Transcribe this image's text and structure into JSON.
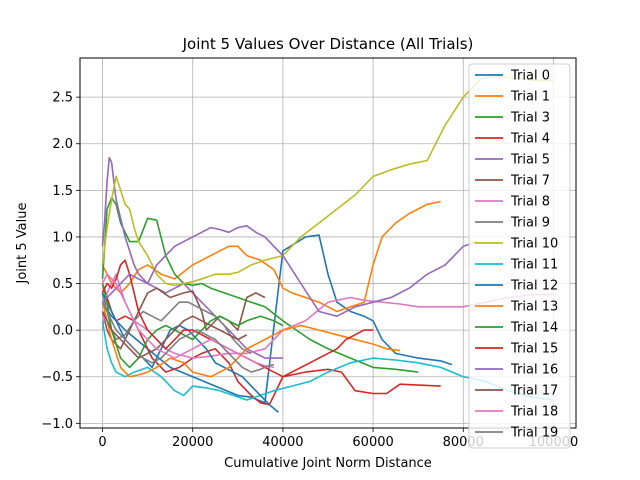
{
  "chart_data": {
    "type": "line",
    "title": "Joint 5 Values Over Distance (All Trials)",
    "xlabel": "Cumulative Joint Norm Distance",
    "ylabel": "Joint 5 Value",
    "xlim": [
      -5000,
      105000
    ],
    "ylim": [
      -1.05,
      2.92
    ],
    "xticks": [
      0,
      20000,
      40000,
      60000,
      80000,
      100000
    ],
    "yticks": [
      -1.0,
      -0.5,
      0.0,
      0.5,
      1.0,
      1.5,
      2.0,
      2.5
    ],
    "ytick_labels": [
      "−1.0",
      "−0.5",
      "0.0",
      "0.5",
      "1.0",
      "1.5",
      "2.0",
      "2.5"
    ],
    "grid": true,
    "legend_position": "upper right",
    "series": [
      {
        "name": "Trial 0",
        "color": "#1f77b4",
        "x": [
          0,
          2000,
          5000,
          10000,
          15000,
          20000,
          25000,
          30000,
          33000,
          36000,
          40000,
          45000,
          48000,
          50000,
          52000,
          55000,
          58000,
          60000,
          62000,
          65000,
          70000,
          75000,
          77500
        ],
        "y": [
          0.3,
          0.15,
          0.0,
          -0.2,
          -0.4,
          -0.5,
          -0.6,
          -0.7,
          -0.72,
          -0.78,
          0.85,
          1.0,
          1.02,
          0.6,
          0.3,
          0.2,
          0.15,
          0.1,
          -0.1,
          -0.25,
          -0.3,
          -0.33,
          -0.37
        ]
      },
      {
        "name": "Trial 1",
        "color": "#ff7f0e",
        "x": [
          0,
          1000,
          2000,
          4000,
          6000,
          8000,
          10000,
          13000,
          16000,
          20000,
          24000,
          26000,
          28000,
          30000,
          32000,
          35000,
          38000,
          40000,
          42000,
          45000,
          48000,
          50000,
          52000,
          55000,
          58000,
          60000,
          62000,
          65000,
          68000,
          70000,
          72000,
          75000
        ],
        "y": [
          0.7,
          0.6,
          0.5,
          0.4,
          0.5,
          0.65,
          0.7,
          0.6,
          0.55,
          0.7,
          0.8,
          0.85,
          0.9,
          0.9,
          0.8,
          0.75,
          0.65,
          0.45,
          0.4,
          0.35,
          0.3,
          0.25,
          0.2,
          0.25,
          0.3,
          0.7,
          1.0,
          1.15,
          1.25,
          1.3,
          1.35,
          1.38
        ]
      },
      {
        "name": "Trial 3",
        "color": "#2ca02c",
        "x": [
          0,
          1000,
          2000,
          3000,
          4000,
          6000,
          8000,
          10000,
          12000,
          14000,
          16000,
          18000,
          20000,
          22000,
          24000,
          27000,
          30000,
          33000,
          36000,
          40000,
          43000,
          46000,
          50000,
          55000,
          60000,
          65000,
          70000
        ],
        "y": [
          0.55,
          1.3,
          1.42,
          1.35,
          1.15,
          0.95,
          0.95,
          1.2,
          1.18,
          0.8,
          0.6,
          0.5,
          0.48,
          0.5,
          0.45,
          0.4,
          0.35,
          0.3,
          0.25,
          0.1,
          0.0,
          -0.1,
          -0.2,
          -0.3,
          -0.4,
          -0.42,
          -0.45
        ]
      },
      {
        "name": "Trial 4",
        "color": "#d62728",
        "x": [
          0,
          1000,
          2000,
          3000,
          5000,
          7000,
          9000,
          11000,
          14000,
          17000,
          20000,
          22000,
          25000,
          28000,
          30000,
          33000,
          35000,
          37000,
          40000,
          45000,
          50000,
          53000,
          56000,
          60000,
          63000,
          66000,
          70000,
          75000
        ],
        "y": [
          0.5,
          0.35,
          0.2,
          0.1,
          0.15,
          0.1,
          -0.1,
          -0.3,
          -0.45,
          -0.4,
          -0.3,
          -0.25,
          -0.2,
          -0.35,
          -0.55,
          -0.7,
          -0.78,
          -0.8,
          -0.5,
          -0.45,
          -0.42,
          -0.45,
          -0.65,
          -0.68,
          -0.68,
          -0.58,
          -0.59,
          -0.6
        ]
      },
      {
        "name": "Trial 5",
        "color": "#9467bd",
        "x": [
          0,
          500,
          1000,
          1500,
          2000,
          2500,
          3000,
          4000,
          5000,
          6000,
          7000,
          8000,
          10000,
          12000,
          14000,
          16000,
          18000,
          20000,
          22000,
          24000,
          26000,
          28000,
          30000,
          32000,
          34000,
          36000,
          38000,
          40000
        ],
        "y": [
          0.9,
          1.2,
          1.6,
          1.85,
          1.8,
          1.6,
          1.4,
          1.2,
          1.0,
          0.85,
          0.7,
          0.6,
          0.5,
          0.45,
          0.4,
          0.45,
          0.5,
          0.4,
          0.3,
          0.2,
          0.1,
          0.0,
          -0.1,
          -0.2,
          -0.25,
          -0.3,
          -0.3,
          -0.3
        ]
      },
      {
        "name": "Trial 7",
        "color": "#8c564b",
        "x": [
          0,
          1000,
          2000,
          4000,
          6000,
          8000,
          10000,
          12000,
          15000,
          18000,
          20000,
          22000,
          23000,
          24000,
          26000,
          28000,
          30000,
          32000,
          34000,
          36000
        ],
        "y": [
          0.2,
          0.0,
          -0.1,
          -0.2,
          0.0,
          0.2,
          0.4,
          0.45,
          0.35,
          0.4,
          0.42,
          0.2,
          0.0,
          0.05,
          0.15,
          0.1,
          0.0,
          0.35,
          0.4,
          0.35
        ]
      },
      {
        "name": "Trial 8",
        "color": "#e377c2",
        "x": [
          0,
          1000,
          2000,
          3000,
          5000,
          7000,
          10000,
          12000,
          14000,
          16000,
          20000,
          24000,
          28000,
          32000,
          36000,
          40000,
          45000,
          50000,
          55000,
          58000,
          62000,
          66000,
          70000,
          75000,
          80000,
          85000,
          90000,
          95000,
          100000
        ],
        "y": [
          0.0,
          0.4,
          0.5,
          0.6,
          0.3,
          0.1,
          0.0,
          -0.1,
          -0.2,
          -0.25,
          -0.3,
          -0.28,
          -0.25,
          -0.25,
          -0.2,
          0.0,
          0.1,
          0.3,
          0.35,
          0.32,
          0.3,
          0.28,
          0.25,
          0.25,
          0.25,
          0.3,
          0.35,
          0.38,
          0.38
        ]
      },
      {
        "name": "Trial 9",
        "color": "#7f7f7f",
        "x": [
          0,
          1000,
          2000,
          3000,
          5000,
          7000,
          9000,
          11000,
          13000,
          15000,
          17000,
          19000,
          21000,
          23000,
          25000,
          27000,
          29000,
          31000,
          33000
        ],
        "y": [
          0.4,
          0.2,
          0.0,
          -0.1,
          -0.05,
          0.1,
          0.2,
          0.15,
          0.1,
          0.2,
          0.3,
          0.3,
          0.25,
          0.2,
          0.15,
          0.05,
          -0.1,
          -0.2,
          -0.25
        ]
      },
      {
        "name": "Trial 10",
        "color": "#bcbd22",
        "x": [
          0,
          1000,
          2000,
          3000,
          4000,
          5000,
          6000,
          7000,
          8000,
          10000,
          12000,
          14000,
          16000,
          18000,
          20000,
          22000,
          25000,
          28000,
          30000,
          33000,
          36000,
          40000,
          44000,
          48000,
          52000,
          56000,
          60000,
          64000,
          68000,
          72000,
          76000,
          80000,
          84000,
          88000,
          92000,
          96000,
          100000
        ],
        "y": [
          0.7,
          1.1,
          1.4,
          1.65,
          1.5,
          1.35,
          1.3,
          1.1,
          0.95,
          0.8,
          0.6,
          0.5,
          0.48,
          0.5,
          0.52,
          0.55,
          0.6,
          0.6,
          0.62,
          0.7,
          0.75,
          0.8,
          1.0,
          1.15,
          1.3,
          1.45,
          1.65,
          1.72,
          1.78,
          1.82,
          2.2,
          2.5,
          2.7,
          2.72,
          2.7,
          2.68,
          2.68
        ]
      },
      {
        "name": "Trial 11",
        "color": "#17becf",
        "x": [
          0,
          1000,
          2000,
          3000,
          5000,
          7000,
          10000,
          13000,
          16000,
          18000,
          20000,
          23000,
          26000,
          29000,
          32000,
          35000,
          38000,
          42000,
          46000,
          50000,
          55000,
          60000,
          65000,
          70000,
          75000,
          80000,
          85000,
          90000,
          95000,
          100000
        ],
        "y": [
          0.1,
          -0.2,
          -0.35,
          -0.45,
          -0.5,
          -0.45,
          -0.4,
          -0.5,
          -0.65,
          -0.7,
          -0.6,
          -0.62,
          -0.65,
          -0.7,
          -0.75,
          -0.7,
          -0.65,
          -0.6,
          -0.55,
          -0.45,
          -0.35,
          -0.3,
          -0.32,
          -0.35,
          -0.4,
          -0.5,
          -0.55,
          -0.65,
          -0.72,
          -0.75
        ]
      },
      {
        "name": "Trial 12",
        "color": "#1f77b4",
        "x": [
          0,
          1000,
          2000,
          3000,
          5000,
          7000,
          9000,
          11000,
          13000,
          15000,
          17000,
          19000,
          21000,
          23000,
          25000,
          27000,
          29000,
          31000,
          33000,
          35000,
          37000,
          39000
        ],
        "y": [
          0.4,
          0.3,
          0.2,
          0.1,
          -0.1,
          -0.2,
          -0.3,
          -0.4,
          -0.2,
          0.0,
          0.05,
          0.0,
          -0.1,
          -0.2,
          -0.35,
          -0.4,
          -0.45,
          -0.5,
          -0.6,
          -0.7,
          -0.8,
          -0.88
        ]
      },
      {
        "name": "Trial 13",
        "color": "#ff7f0e",
        "x": [
          0,
          1000,
          2000,
          4000,
          6000,
          8000,
          10000,
          12000,
          15000,
          18000,
          20000,
          24000,
          28000,
          32000,
          36000,
          40000,
          44000,
          48000,
          52000,
          56000,
          60000,
          63000,
          66000
        ],
        "y": [
          0.3,
          0.1,
          -0.1,
          -0.4,
          -0.5,
          -0.48,
          -0.45,
          -0.4,
          -0.3,
          -0.35,
          -0.45,
          -0.5,
          -0.4,
          -0.2,
          -0.1,
          0.0,
          0.05,
          0.0,
          -0.05,
          -0.1,
          -0.15,
          -0.2,
          -0.22
        ]
      },
      {
        "name": "Trial 14",
        "color": "#2ca02c",
        "x": [
          0,
          1000,
          2000,
          4000,
          6000,
          8000,
          10000,
          12000,
          14000,
          16000,
          18000,
          20000,
          22000,
          24000,
          26000,
          28000,
          30000,
          32000,
          35000,
          38000,
          40000
        ],
        "y": [
          0.5,
          0.3,
          0.0,
          -0.3,
          -0.4,
          -0.3,
          -0.1,
          0.0,
          0.05,
          0.0,
          -0.05,
          -0.1,
          0.0,
          0.1,
          0.15,
          0.1,
          0.05,
          0.1,
          0.15,
          0.1,
          0.05
        ]
      },
      {
        "name": "Trial 15",
        "color": "#d62728",
        "x": [
          0,
          1000,
          2000,
          3000,
          4000,
          5000,
          6000,
          7000,
          8000,
          9000,
          10000,
          12000,
          14000,
          16000,
          18000,
          20000,
          22000,
          24000,
          26000,
          28000,
          30000,
          32000,
          34000,
          36000,
          38000,
          40000,
          42000,
          44000,
          46000,
          48000,
          50000,
          52000,
          54000,
          56000,
          58000,
          60000
        ],
        "y": [
          0.4,
          0.5,
          0.45,
          0.55,
          0.7,
          0.75,
          0.6,
          0.4,
          0.2,
          0.1,
          0.0,
          -0.1,
          -0.2,
          -0.1,
          0.0,
          0.0,
          -0.05,
          -0.1,
          -0.15,
          -0.2,
          -0.25,
          -0.3,
          -0.35,
          -0.4,
          -0.45,
          -0.5,
          -0.45,
          -0.4,
          -0.35,
          -0.3,
          -0.25,
          -0.2,
          -0.1,
          -0.05,
          0.0,
          0.0
        ]
      },
      {
        "name": "Trial 16",
        "color": "#9467bd",
        "x": [
          0,
          2000,
          4000,
          6000,
          8000,
          10000,
          12000,
          14000,
          16000,
          18000,
          20000,
          22000,
          24000,
          26000,
          28000,
          30000,
          32000,
          34000,
          36000,
          38000,
          40000,
          44000,
          48000,
          52000,
          56000,
          60000,
          64000,
          68000,
          72000,
          76000,
          80000,
          83000
        ],
        "y": [
          0.3,
          0.4,
          0.5,
          0.6,
          0.55,
          0.5,
          0.7,
          0.8,
          0.9,
          0.95,
          1.0,
          1.05,
          1.1,
          1.08,
          1.05,
          1.1,
          1.12,
          1.05,
          1.0,
          0.9,
          0.8,
          0.5,
          0.2,
          0.15,
          0.25,
          0.3,
          0.35,
          0.45,
          0.6,
          0.7,
          0.9,
          0.95
        ]
      },
      {
        "name": "Trial 17",
        "color": "#8c564b",
        "x": [
          0,
          1000,
          2000,
          4000,
          6000,
          8000,
          10000,
          12000,
          14000,
          16000,
          18000,
          20000,
          22000,
          24000,
          26000,
          28000,
          30000,
          32000
        ],
        "y": [
          0.2,
          0.1,
          0.0,
          -0.1,
          -0.2,
          -0.3,
          -0.25,
          -0.2,
          -0.1,
          0.0,
          0.1,
          0.15,
          0.1,
          0.05,
          0.0,
          -0.05,
          -0.1,
          -0.05
        ]
      },
      {
        "name": "Trial 18",
        "color": "#e377c2",
        "x": [
          0,
          1000,
          2000,
          3000,
          4000,
          5000,
          6000,
          7000,
          8000,
          10000,
          12000,
          14000,
          16000,
          18000,
          20000,
          22000,
          24000,
          26000,
          28000,
          30000,
          32000,
          34000,
          36000,
          38000
        ],
        "y": [
          0.5,
          0.6,
          0.55,
          0.5,
          0.4,
          0.3,
          0.2,
          0.1,
          0.0,
          -0.1,
          -0.2,
          -0.25,
          -0.3,
          -0.25,
          -0.2,
          -0.15,
          -0.1,
          -0.15,
          -0.2,
          -0.25,
          -0.3,
          -0.35,
          -0.38,
          -0.4
        ]
      },
      {
        "name": "Trial 19",
        "color": "#7f7f7f",
        "x": [
          0,
          1000,
          2000,
          3000,
          5000,
          7000,
          9000,
          11000,
          13000,
          15000,
          17000,
          19000,
          21000,
          23000,
          25000,
          27000,
          29000,
          31000,
          33000,
          35000,
          37000,
          38000
        ],
        "y": [
          0.3,
          0.2,
          0.1,
          0.0,
          -0.1,
          -0.2,
          -0.3,
          -0.35,
          -0.3,
          -0.2,
          -0.1,
          -0.05,
          0.0,
          -0.05,
          -0.1,
          -0.2,
          -0.3,
          -0.4,
          -0.45,
          -0.42,
          -0.38,
          -0.37
        ]
      }
    ]
  }
}
